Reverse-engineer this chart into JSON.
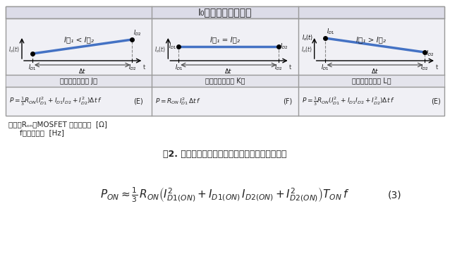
{
  "bg_color": "#ffffff",
  "table_bg": "#e8e8f0",
  "table_header_bg": "#d0d0e0",
  "table_border": "#999999",
  "title_text": "I₀随时间的变化情况",
  "case1_title": "I₝₁ < I₝₂",
  "case2_title": "I₝₁ = I₝₂",
  "case3_title": "I₝₁ > I₝₂",
  "case1_label": "例１（参见附表 J）",
  "case2_label": "例２（参见附表 K）",
  "case3_label": "例３（参见附表 L）",
  "note_line1": "但是，Rₒₙ：MOSFET 的导通电阻  [Ω]",
  "note_line2": "f：开关频率  [Hz]",
  "table_caption": "表2. 各种波形形状的线性近似法导通损耗计算公式",
  "line_color": "#4472c4",
  "dot_color": "#000000",
  "axis_color": "#000000",
  "dashed_color": "#888888"
}
